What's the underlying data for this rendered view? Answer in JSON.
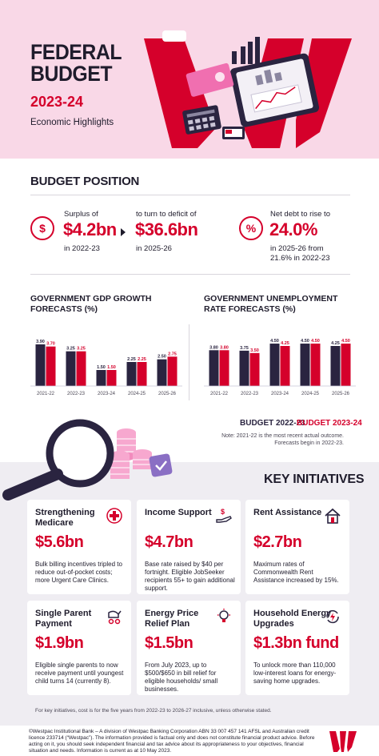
{
  "header": {
    "title_line1": "FEDERAL",
    "title_line2": "BUDGET",
    "year": "2023-24",
    "subtitle": "Economic Highlights"
  },
  "budget_position": {
    "title": "BUDGET POSITION",
    "surplus": {
      "label": "Surplus of",
      "value": "$4.2bn",
      "period": "in 2022-23"
    },
    "deficit": {
      "label": "to turn to deficit of",
      "value": "$36.6bn",
      "period": "in 2025-26"
    },
    "debt": {
      "label": "Net debt to rise to",
      "value": "24.0%",
      "detail_line1": "in 2025-26 from",
      "detail_line2": "21.6% in 2022-23"
    },
    "icons": {
      "surplus": "dollar-icon",
      "debt": "percent-icon"
    }
  },
  "chart_data": [
    {
      "type": "bar",
      "title": "GOVERNMENT GDP GROWTH FORECASTS (%)",
      "categories": [
        "2021-22",
        "2022-23",
        "2023-24",
        "2024-25",
        "2025-26"
      ],
      "series": [
        {
          "name": "BUDGET 2022-23",
          "values": [
            3.9,
            3.25,
            1.5,
            2.25,
            2.5
          ],
          "labels": [
            "3.90",
            "3.25",
            "1.50",
            "2.25",
            "2.50"
          ]
        },
        {
          "name": "BUDGET 2023-24",
          "values": [
            3.7,
            3.25,
            1.5,
            2.25,
            2.75
          ],
          "labels": [
            "3.70",
            "3.25",
            "1.50",
            "2.25",
            "2.75"
          ]
        }
      ],
      "ylim": [
        0,
        4.5
      ]
    },
    {
      "type": "bar",
      "title": "GOVERNMENT UNEMPLOYMENT RATE FORECASTS (%)",
      "categories": [
        "2021-22",
        "2022-23",
        "2023-24",
        "2024-25",
        "2025-26"
      ],
      "series": [
        {
          "name": "BUDGET 2022-23",
          "values": [
            3.8,
            3.75,
            4.5,
            4.5,
            4.25
          ],
          "labels": [
            "3.80",
            "3.75",
            "4.50",
            "4.50",
            "4.25"
          ]
        },
        {
          "name": "BUDGET 2023-24",
          "values": [
            3.8,
            3.5,
            4.25,
            4.5,
            4.5
          ],
          "labels": [
            "3.80",
            "3.50",
            "4.25",
            "4.50",
            "4.50"
          ]
        }
      ],
      "ylim": [
        0,
        5.1
      ]
    }
  ],
  "charts": {
    "gdp_title_line1": "GOVERNMENT GDP GROWTH",
    "gdp_title_line2": "FORECASTS (%)",
    "unemp_title_line1": "GOVERNMENT UNEMPLOYMENT",
    "unemp_title_line2": "RATE FORECASTS (%)",
    "legend_2022": "BUDGET 2022-23",
    "legend_2023": "BUDGET 2023-24",
    "note_line1": "Note: 2021-22 is the most recent actual outcome.",
    "note_line2": "Forecasts begin in 2022-23.",
    "colors": {
      "budget_2022": "#2a2440",
      "budget_2023": "#d5002b"
    }
  },
  "initiatives": {
    "title": "KEY INITIATIVES",
    "cards": [
      {
        "title_line1": "Strengthening",
        "title_line2": "Medicare",
        "amount": "$5.6bn",
        "text": "Bulk billing incentives tripled to reduce out-of-pocket costs; more Urgent Care Clinics.",
        "icon": "medical-cross-icon"
      },
      {
        "title_line1": "Income Support",
        "title_line2": "",
        "amount": "$4.7bn",
        "text": "Base rate raised by $40 per fortnight. Eligible JobSeeker recipients 55+ to gain additional support.",
        "icon": "hand-dollar-icon"
      },
      {
        "title_line1": "Rent Assistance",
        "title_line2": "",
        "amount": "$2.7bn",
        "text": "Maximum rates of Commonwealth Rent Assistance increased by 15%.",
        "icon": "house-icon"
      },
      {
        "title_line1": "Single Parent",
        "title_line2": "Payment",
        "amount": "$1.9bn",
        "text": "Eligible single parents to now receive payment until youngest child turns 14 (currently 8).",
        "icon": "stroller-icon"
      },
      {
        "title_line1": "Energy Price",
        "title_line2": "Relief Plan",
        "amount": "$1.5bn",
        "text": "From July 2023, up to $500/$650 in bill relief for eligible households/ small businesses.",
        "icon": "lightbulb-icon"
      },
      {
        "title_line1": "Household Energy",
        "title_line2": "Upgrades",
        "amount": "$1.3bn fund",
        "text": "To unlock more than 110,000 low-interest loans for energy-saving home upgrades.",
        "icon": "energy-cycle-icon"
      }
    ],
    "footnote": "For key initiatives, cost is for the five years from 2022-23 to 2026-27 inclusive, unless otherwise stated."
  },
  "footer": {
    "disclaimer": "©Westpac Institutional Bank – A division of Westpac Banking Corporation ABN 33 007 457 141 AFSL and Australian credit licence 233714 (“Westpac”). The information provided is factual only and does not constitute financial product advice. Before acting on it, you should seek independent financial and tax advice about its appropriateness to your objectives, financial situation and needs. Information is current as at 10 May 2023.",
    "logo": "westpac-logo-icon"
  }
}
